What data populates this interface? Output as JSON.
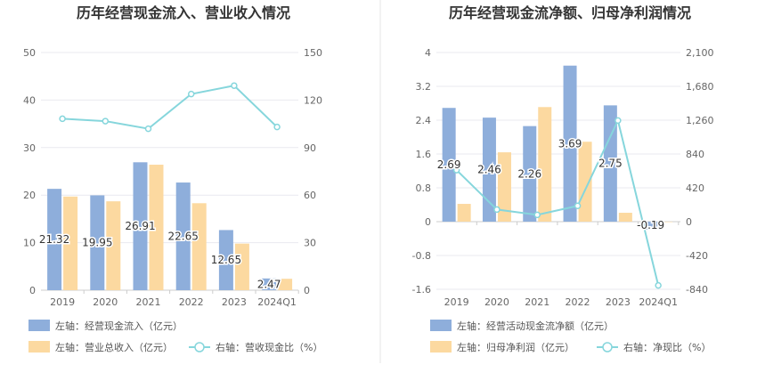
{
  "colors": {
    "bar1": "#8eaedb",
    "bar2": "#fcd9a0",
    "line": "#86d6dc",
    "grid": "#e9e9ef",
    "divider": "#e6e6e6"
  },
  "chart_data": [
    {
      "type": "bar",
      "title": "历年经营现金流入、营业收入情况",
      "categories": [
        "2019",
        "2020",
        "2021",
        "2022",
        "2023",
        "2024Q1"
      ],
      "left_axis": {
        "ticks": [
          "0",
          "10",
          "20",
          "30",
          "40",
          "50"
        ],
        "ylim": [
          0,
          50
        ]
      },
      "right_axis": {
        "ticks": [
          "0",
          "30",
          "60",
          "90",
          "120",
          "150"
        ],
        "ylim": [
          0,
          150
        ]
      },
      "series": [
        {
          "name": "左轴：经营现金流入（亿元）",
          "axis": "left",
          "kind": "bar",
          "color": "bar1",
          "values": [
            21.32,
            19.95,
            26.91,
            22.65,
            12.65,
            2.47
          ],
          "labels": [
            "21.32",
            "19.95",
            "26.91",
            "22.65",
            "12.65",
            "2.47"
          ]
        },
        {
          "name": "左轴：营业总收入（亿元）",
          "axis": "left",
          "kind": "bar",
          "color": "bar2",
          "values": [
            19.7,
            18.7,
            26.4,
            18.3,
            9.8,
            2.4
          ]
        },
        {
          "name": "右轴：营收现金比（%）",
          "axis": "right",
          "kind": "line",
          "color": "line",
          "values": [
            108.2,
            106.7,
            101.9,
            123.8,
            129.1,
            103.0
          ]
        }
      ]
    },
    {
      "type": "bar",
      "title": "历年经营现金流净额、归母净利润情况",
      "categories": [
        "2019",
        "2020",
        "2021",
        "2022",
        "2023",
        "2024Q1"
      ],
      "left_axis": {
        "ticks": [
          "-1.6",
          "-0.8",
          "0",
          "0.8",
          "1.6",
          "2.4",
          "3.2",
          "4"
        ],
        "ylim": [
          -1.6,
          4
        ]
      },
      "right_axis": {
        "ticks": [
          "-840",
          "-420",
          "0",
          "420",
          "840",
          "1,260",
          "1,680",
          "2,100"
        ],
        "ylim": [
          -840,
          2100
        ]
      },
      "series": [
        {
          "name": "左轴：经营活动现金流净额（亿元）",
          "axis": "left",
          "kind": "bar",
          "color": "bar1",
          "values": [
            2.69,
            2.46,
            2.26,
            3.69,
            2.75,
            -0.19
          ],
          "labels": [
            "2.69",
            "2.46",
            "2.26",
            "3.69",
            "2.75",
            "-0.19"
          ]
        },
        {
          "name": "左轴：归母净利润（亿元）",
          "axis": "left",
          "kind": "bar",
          "color": "bar2",
          "values": [
            0.42,
            1.64,
            2.71,
            1.89,
            0.21,
            0.0
          ]
        },
        {
          "name": "右轴：净现比（%）",
          "axis": "right",
          "kind": "line",
          "color": "line",
          "values": [
            640,
            150,
            84,
            196,
            1256,
            -792
          ]
        }
      ]
    }
  ]
}
